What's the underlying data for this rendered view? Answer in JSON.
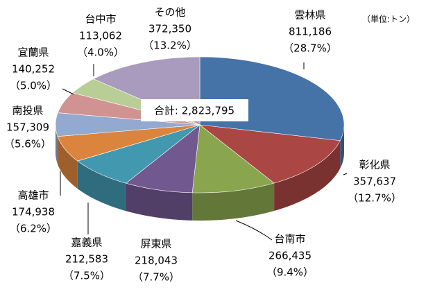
{
  "chart_data": {
    "type": "pie3d",
    "unit_note": "（単位:トン）",
    "total_label": "合計: 2,823,795",
    "categories": [
      "雲林県",
      "彰化県",
      "台南市",
      "屏東県",
      "嘉義県",
      "高雄市",
      "南投県",
      "宜蘭県",
      "台中市",
      "その他"
    ],
    "values": [
      811186,
      357637,
      266435,
      218043,
      212583,
      174938,
      157309,
      140252,
      113062,
      372350
    ],
    "value_labels": [
      "811,186",
      "357,637",
      "266,435",
      "218,043",
      "212,583",
      "174,938",
      "157,309",
      "140,252",
      "113,062",
      "372,350"
    ],
    "percents": [
      28.7,
      12.7,
      9.4,
      7.7,
      7.5,
      6.2,
      5.6,
      5.0,
      4.0,
      13.2
    ],
    "percent_labels": [
      "（28.7%）",
      "（12.7%）",
      "（9.4%）",
      "（7.7%）",
      "（7.5%）",
      "（6.2%）",
      "（5.6%）",
      "（5.0%）",
      "（4.0%）",
      "（13.2%）"
    ],
    "colors": [
      "#4572A7",
      "#AA4643",
      "#89A54E",
      "#71588F",
      "#4198AF",
      "#DB843D",
      "#93A9CF",
      "#D19392",
      "#B9CD96",
      "#A99BBD"
    ]
  }
}
